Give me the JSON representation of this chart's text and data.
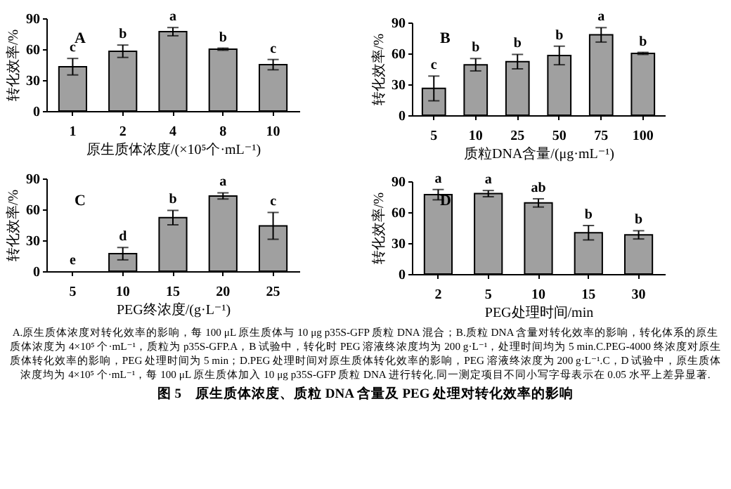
{
  "chart_data": [
    {
      "type": "bar",
      "title": "A",
      "xlabel": "原生质体浓度/(×10⁵个·mL⁻¹)",
      "ylabel": "转化效率/%",
      "categories": [
        "1",
        "2",
        "4",
        "8",
        "10"
      ],
      "values": [
        43,
        58,
        77,
        60,
        45
      ],
      "errors": [
        8,
        6,
        4,
        1,
        5
      ],
      "color": "#a0a0a0",
      "ylim": [
        0,
        90
      ],
      "yticks": [
        0,
        30,
        60,
        90
      ],
      "annotations": [
        {
          "text": "c",
          "x": "1",
          "y": 51
        },
        {
          "text": "b",
          "x": "2",
          "y": 64
        },
        {
          "text": "a",
          "x": "4",
          "y": 81
        },
        {
          "text": "b",
          "x": "8",
          "y": 61
        },
        {
          "text": "c",
          "x": "10",
          "y": 50
        }
      ]
    },
    {
      "type": "bar",
      "title": "B",
      "xlabel": "质粒DNA含量/(μg·mL⁻¹)",
      "ylabel": "转化效率/%",
      "categories": [
        "5",
        "10",
        "25",
        "50",
        "75",
        "100"
      ],
      "values": [
        26,
        49,
        52,
        58,
        78,
        60
      ],
      "errors": [
        12,
        6,
        7,
        9,
        7,
        1
      ],
      "color": "#a0a0a0",
      "ylim": [
        0,
        90
      ],
      "yticks": [
        0,
        30,
        60,
        90
      ],
      "annotations": [
        {
          "text": "c",
          "x": "5",
          "y": 38
        },
        {
          "text": "b",
          "x": "10",
          "y": 55
        },
        {
          "text": "b",
          "x": "25",
          "y": 59
        },
        {
          "text": "b",
          "x": "50",
          "y": 67
        },
        {
          "text": "a",
          "x": "75",
          "y": 85
        },
        {
          "text": "b",
          "x": "100",
          "y": 61
        }
      ]
    },
    {
      "type": "bar",
      "title": "C",
      "xlabel": "PEG终浓度/(g·L⁻¹)",
      "ylabel": "转化效率/%",
      "categories": [
        "5",
        "10",
        "15",
        "20",
        "25"
      ],
      "values": [
        0,
        17,
        52,
        73,
        44
      ],
      "errors": [
        null,
        6,
        7,
        3,
        13
      ],
      "color": "#a0a0a0",
      "ylim": [
        0,
        90
      ],
      "yticks": [
        0,
        30,
        60,
        90
      ],
      "annotations": [
        {
          "text": "e",
          "x": "5",
          "y": 0
        },
        {
          "text": "d",
          "x": "10",
          "y": 23
        },
        {
          "text": "b",
          "x": "15",
          "y": 59
        },
        {
          "text": "a",
          "x": "20",
          "y": 76.5
        },
        {
          "text": "c",
          "x": "25",
          "y": 57
        }
      ]
    },
    {
      "type": "bar",
      "title": "D",
      "xlabel": "PEG处理时间/min",
      "ylabel": "转化效率/%",
      "categories": [
        "2",
        "5",
        "10",
        "15",
        "30"
      ],
      "values": [
        77,
        78,
        69,
        40,
        38
      ],
      "errors": [
        5,
        3,
        4,
        7,
        4
      ],
      "color": "#a0a0a0",
      "ylim": [
        0,
        90
      ],
      "yticks": [
        0,
        30,
        60,
        90
      ],
      "annotations": [
        {
          "text": "a",
          "x": "2",
          "y": 81.5
        },
        {
          "text": "a",
          "x": "5",
          "y": 81
        },
        {
          "text": "ab",
          "x": "10",
          "y": 73
        },
        {
          "text": "b",
          "x": "15",
          "y": 47
        },
        {
          "text": "b",
          "x": "30",
          "y": 42
        }
      ]
    },
    {
      "type": "other",
      "title": "图 5　原生质体浓度、质粒 DNA 含量及 PEG 处理对转化效率的影响",
      "annotations": [
        "A.原生质体浓度对转化效率的影响，每 100 μL 原生质体与 10 μg p35S-GFP 质粒 DNA 混合；B.质粒 DNA 含量对转化效率的影响，转化体系的原生质体浓度为 4×10⁵ 个·mL⁻¹，质粒为 p35S-GFP.A，B 试验中，转化时 PEG 溶液终浓度均为 200 g·L⁻¹，处理时间均为 5 min.C.PEG-4000 终浓度对原生质体转化效率的影响，PEG 处理时间为 5 min；D.PEG 处理时间对原生质体转化效率的影响，PEG 溶液终浓度为 200 g·L⁻¹.C，D 试验中，原生质体浓度均为 4×10⁵ 个·mL⁻¹，每 100 μL 原生质体加入 10 μg p35S-GFP 质粒 DNA 进行转化.同一测定项目不同小写字母表示在 0.05 水平上差异显著."
      ]
    }
  ]
}
